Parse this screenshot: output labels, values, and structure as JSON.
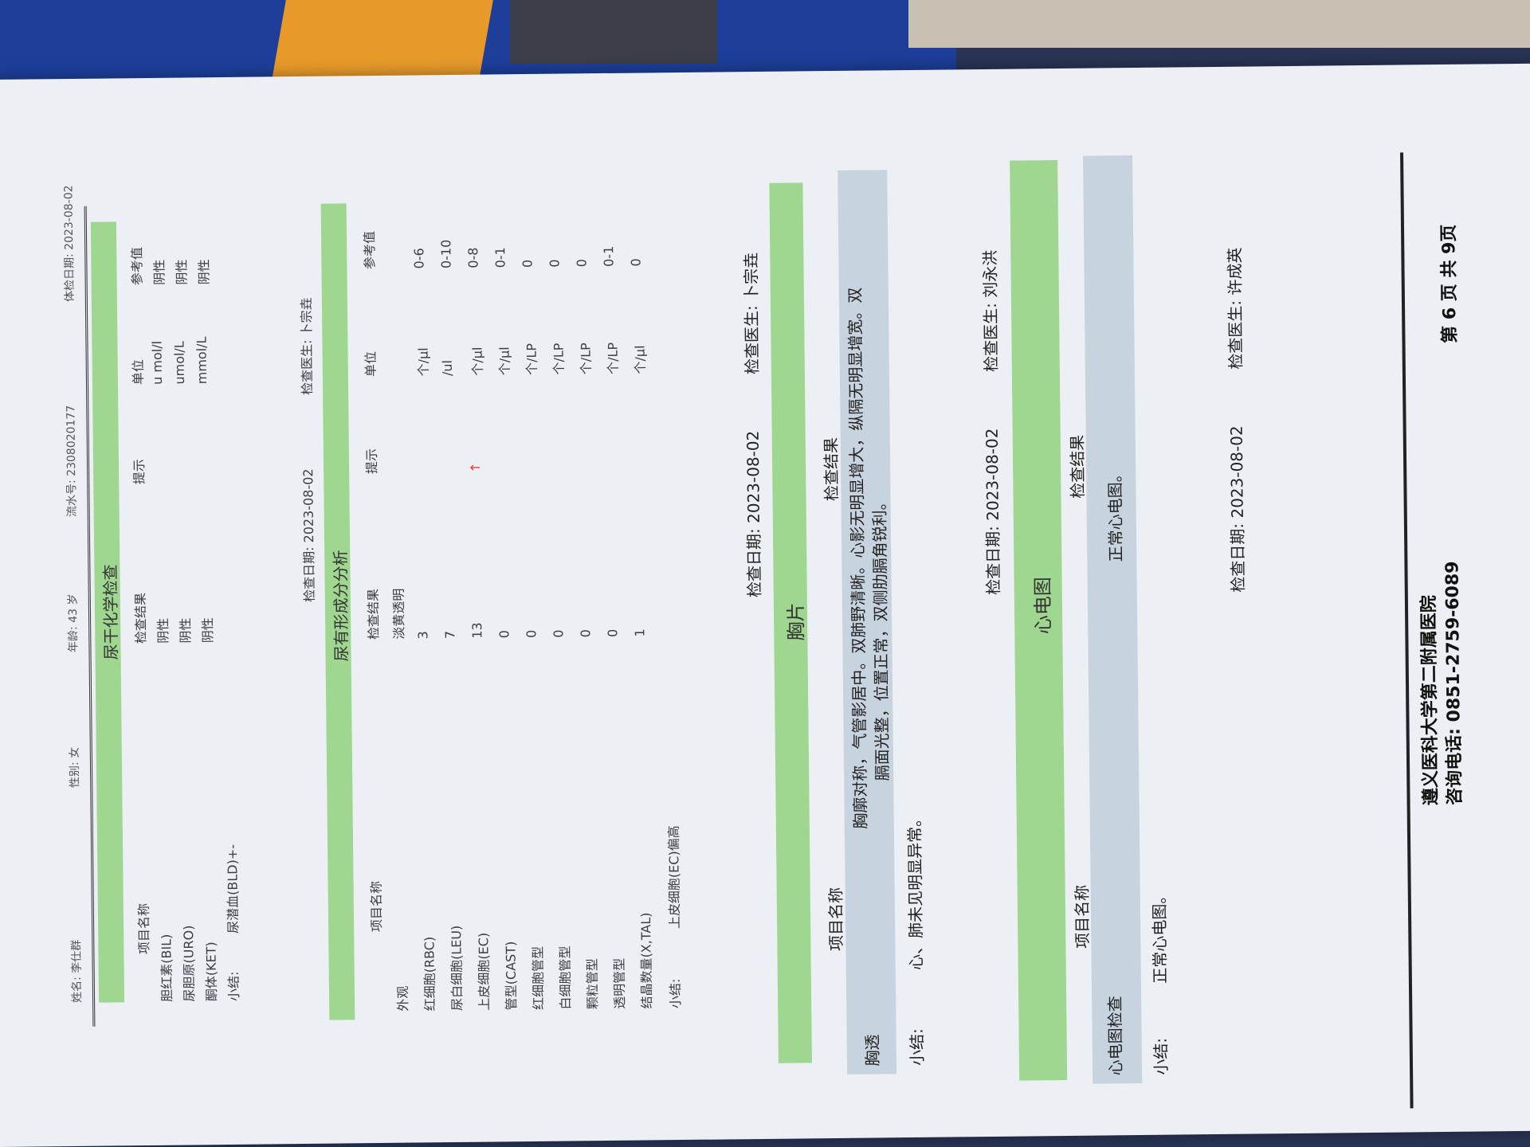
{
  "header": {
    "name": "姓名: 李仕群",
    "sex": "性别: 女",
    "age": "年龄: 43 岁",
    "serial": "流水号: 2308020177",
    "exam_date": "体检日期: 2023-08-02"
  },
  "urine_chem": {
    "title": "尿干化学检查",
    "cols": [
      "项目名称",
      "检查结果",
      "提示",
      "单位",
      "参考值"
    ],
    "rows": [
      [
        "胆红素(BIL)",
        "阴性",
        "",
        "u mol/l",
        "阴性"
      ],
      [
        "尿胆原(URO)",
        "阴性",
        "",
        "umol/L",
        "阴性"
      ],
      [
        "酮体(KET)",
        "阴性",
        "",
        "mmol/L",
        "阴性"
      ]
    ],
    "summary_label": "小结:",
    "summary": "尿潜血(BLD)+-",
    "date": "检查日期: 2023-08-02",
    "doctor": "检查医生: 卜宗垚"
  },
  "urine_sed": {
    "title": "尿有形成分分析",
    "cols": [
      "项目名称",
      "检查结果",
      "提示",
      "单位",
      "参考值"
    ],
    "rows": [
      [
        "外观",
        "淡黄透明",
        "",
        "",
        ""
      ],
      [
        "红细胞(RBC)",
        "3",
        "",
        "个/μl",
        "0-6"
      ],
      [
        "尿白细胞(LEU)",
        "7",
        "",
        "/ul",
        "0-10"
      ],
      [
        "上皮细胞(EC)",
        "13",
        "↑",
        "个/μl",
        "0-8"
      ],
      [
        "管型(CAST)",
        "0",
        "",
        "个/μl",
        "0-1"
      ],
      [
        "红细胞管型",
        "0",
        "",
        "个/LP",
        "0"
      ],
      [
        "白细胞管型",
        "0",
        "",
        "个/LP",
        "0"
      ],
      [
        "颗粒管型",
        "0",
        "",
        "个/LP",
        "0"
      ],
      [
        "透明管型",
        "0",
        "",
        "个/LP",
        "0-1"
      ],
      [
        "结晶数量(X,TAL)",
        "1",
        "",
        "个/μl",
        "0"
      ]
    ],
    "summary_label": "小结:",
    "summary": "上皮细胞(EC)偏高",
    "date": "检查日期: 2023-08-02",
    "doctor": "检查医生: 卜宗垚"
  },
  "chest": {
    "title": "胸片",
    "cols": [
      "项目名称",
      "检查结果"
    ],
    "item": "胸透",
    "result_line1": "胸廓对称，气管影居中。双肺野清晰。心影无明显增大，纵隔无明显增宽。双",
    "result_line2": "膈面光整，位置正常，双侧肋膈角锐利。",
    "summary_label": "小结:",
    "summary": "心、肺未见明显异常。",
    "date": "检查日期: 2023-08-02",
    "doctor": "检查医生: 刘永洪"
  },
  "ecg": {
    "title": "心电图",
    "cols": [
      "项目名称",
      "检查结果"
    ],
    "item": "心电图检查",
    "result": "正常心电图。",
    "summary_label": "小结:",
    "summary": "正常心电图。",
    "date": "检查日期: 2023-08-02",
    "doctor": "检查医生: 许成英"
  },
  "footer": {
    "hospital": "遵义医科大学第二附属医院",
    "phone": "咨询电话: 0851-2759-6089",
    "page": "第 6 页 共 9页"
  },
  "colors": {
    "section_bar": "#9fd690",
    "result_band": "#c8d3e0",
    "alert": "#e33333"
  }
}
